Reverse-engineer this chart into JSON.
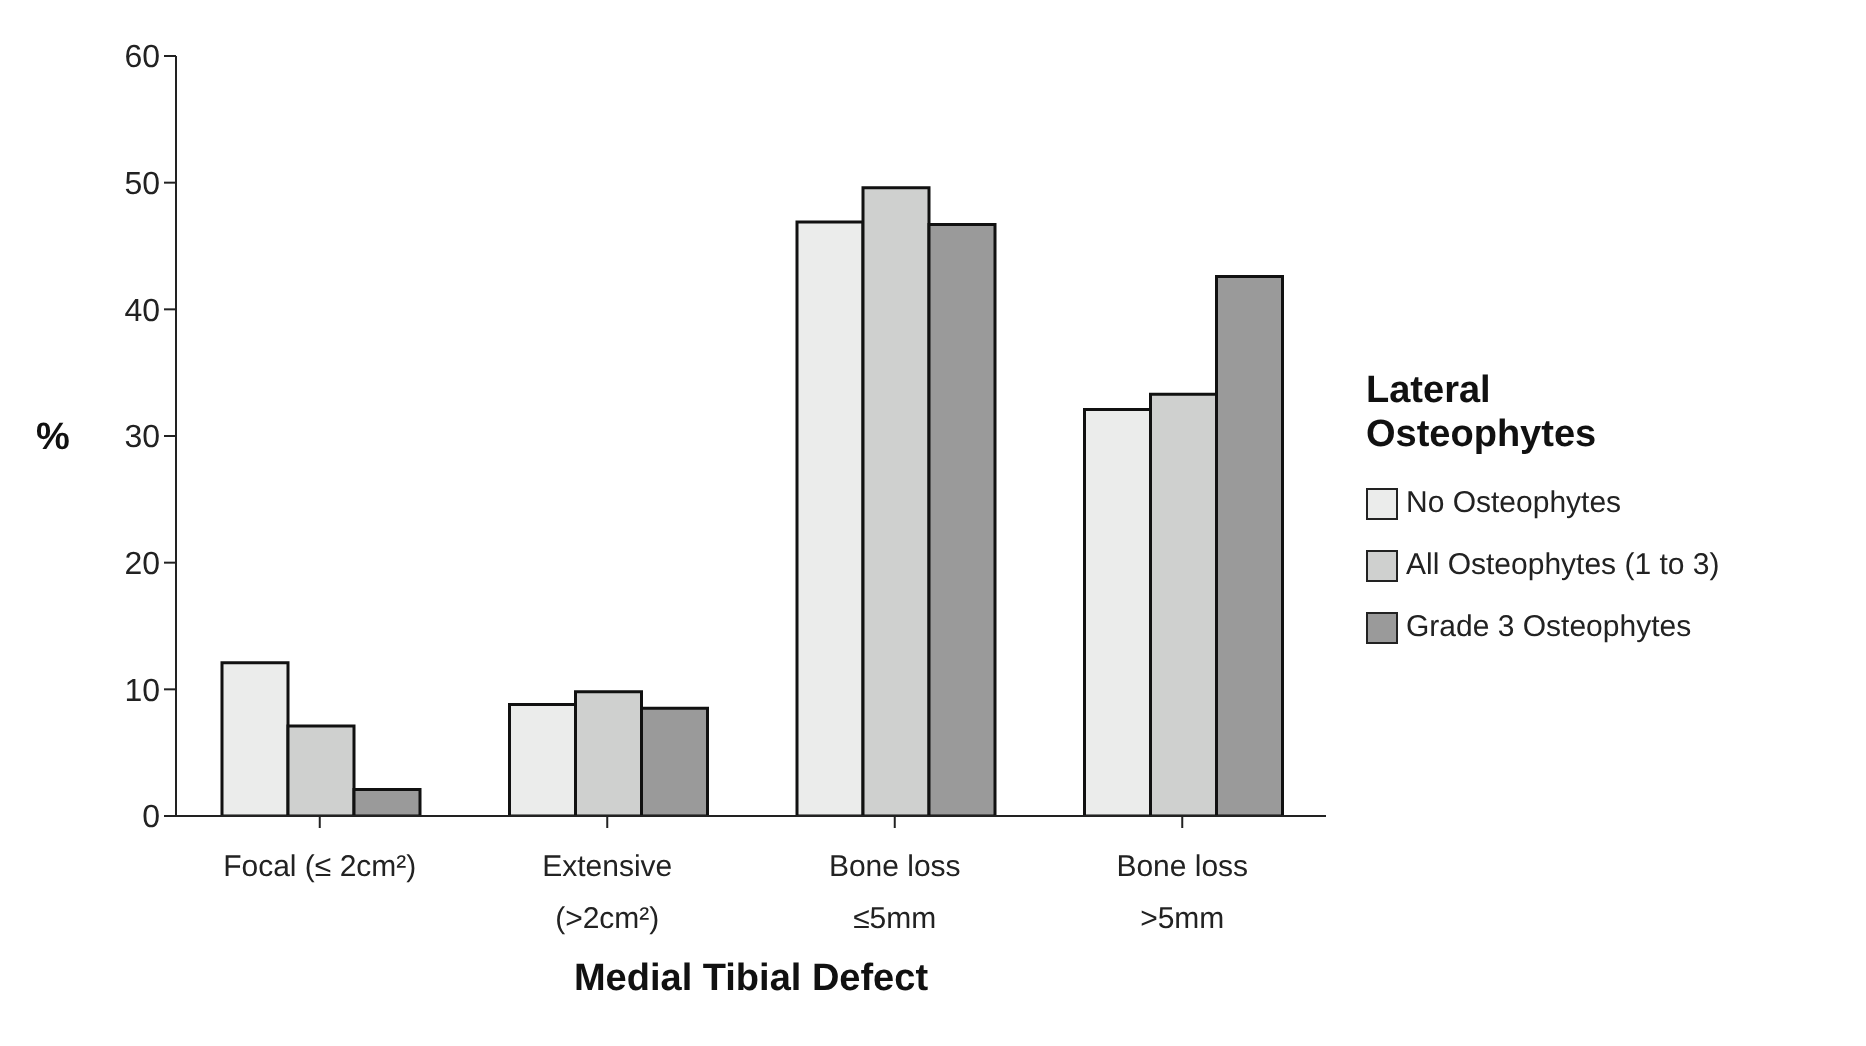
{
  "chart_data": {
    "type": "bar",
    "xlabel": "Medial Tibial Defect",
    "ylabel": "%",
    "legend_title": "Lateral Osteophytes",
    "categories": [
      "Focal (≤ 2cm²)",
      "Extensive\n(>2cm²)",
      "Bone loss\n≤5mm",
      "Bone loss\n>5mm"
    ],
    "series": [
      {
        "name": "No Osteophytes",
        "color": "#ebeceb",
        "values": [
          12.1,
          8.8,
          46.9,
          32.1
        ]
      },
      {
        "name": "All Osteophytes (1 to 3)",
        "color": "#cfd0cf",
        "values": [
          7.1,
          9.8,
          49.6,
          33.3
        ]
      },
      {
        "name": "Grade 3 Osteophytes",
        "color": "#9a9a9a",
        "values": [
          2.1,
          8.5,
          46.7,
          42.6
        ]
      }
    ],
    "ylim": [
      0,
      60
    ],
    "yticks": [
      0,
      10,
      20,
      30,
      40,
      50,
      60
    ],
    "legend": "right"
  }
}
